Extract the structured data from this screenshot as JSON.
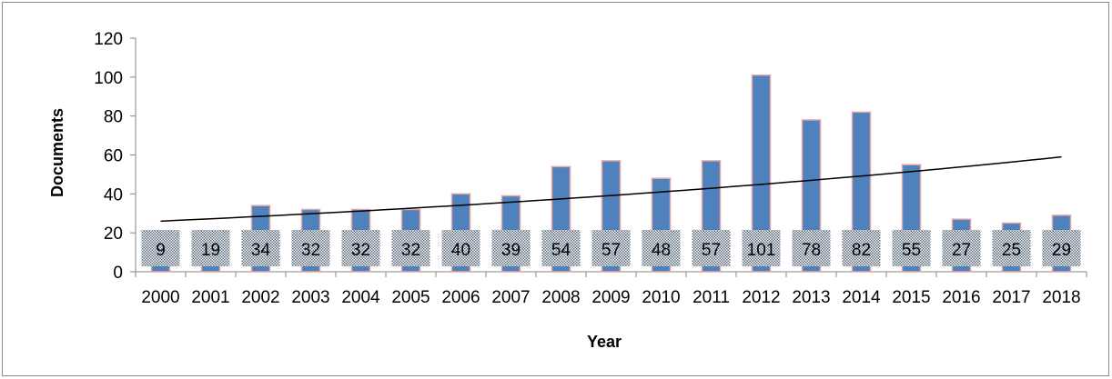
{
  "chart_data": {
    "type": "bar",
    "title": "",
    "xlabel": "Year",
    "ylabel": "Documents",
    "ylim": [
      0,
      120
    ],
    "yticks": [
      0,
      20,
      40,
      60,
      80,
      100,
      120
    ],
    "grid": false,
    "legend": "none",
    "categories": [
      "2000",
      "2001",
      "2002",
      "2003",
      "2004",
      "2005",
      "2006",
      "2007",
      "2008",
      "2009",
      "2010",
      "2011",
      "2012",
      "2013",
      "2014",
      "2015",
      "2016",
      "2017",
      "2018"
    ],
    "series": [
      {
        "values": [
          9,
          19,
          34,
          32,
          32,
          32,
          40,
          39,
          54,
          57,
          48,
          57,
          101,
          78,
          82,
          55,
          27,
          25,
          29
        ],
        "color": "#4f81bd",
        "edge_color": "#e6a5a5"
      }
    ],
    "trendline": {
      "type": "exponential",
      "start": 26,
      "end": 59,
      "color": "#000000"
    }
  }
}
